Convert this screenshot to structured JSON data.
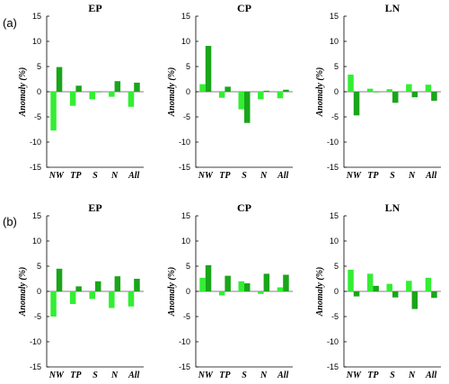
{
  "colors": {
    "light": "#33ee33",
    "dark": "#1aa51a"
  },
  "rows": [
    {
      "label": "(a)"
    },
    {
      "label": "(b)"
    }
  ],
  "chart_data": [
    {
      "type": "bar",
      "row": "(a)",
      "title": "EP",
      "categories": [
        "NW",
        "TP",
        "S",
        "N",
        "All"
      ],
      "ylabel": "Anomaly (%)",
      "ylim": [
        -15,
        15
      ],
      "yticks": [
        -15,
        -10,
        -5,
        0,
        5,
        10,
        15
      ],
      "series": [
        {
          "values": [
            -7.7,
            -2.8,
            -1.5,
            -1.0,
            -3.0
          ]
        },
        {
          "values": [
            4.9,
            1.2,
            0.0,
            2.1,
            1.8
          ]
        }
      ]
    },
    {
      "type": "bar",
      "row": "(a)",
      "title": "CP",
      "categories": [
        "NW",
        "TP",
        "S",
        "N",
        "All"
      ],
      "ylabel": "Anomaly (%)",
      "ylim": [
        -15,
        15
      ],
      "yticks": [
        -15,
        -10,
        -5,
        0,
        5,
        10,
        15
      ],
      "series": [
        {
          "values": [
            1.5,
            -1.2,
            -3.5,
            -1.5,
            -1.3
          ]
        },
        {
          "values": [
            9.1,
            1.0,
            -6.2,
            0.2,
            0.4
          ]
        }
      ]
    },
    {
      "type": "bar",
      "row": "(a)",
      "title": "LN",
      "categories": [
        "NW",
        "TP",
        "S",
        "N",
        "All"
      ],
      "ylabel": "Anomaly (%)",
      "ylim": [
        -15,
        15
      ],
      "yticks": [
        -15,
        -10,
        -5,
        0,
        5,
        10,
        15
      ],
      "series": [
        {
          "values": [
            3.4,
            0.6,
            0.5,
            1.5,
            1.4
          ]
        },
        {
          "values": [
            -4.7,
            0.0,
            -2.2,
            -1.1,
            -1.8
          ]
        }
      ]
    },
    {
      "type": "bar",
      "row": "(b)",
      "title": "EP",
      "categories": [
        "NW",
        "TP",
        "S",
        "N",
        "All"
      ],
      "ylabel": "Anomaly (%)",
      "ylim": [
        -15,
        15
      ],
      "yticks": [
        -15,
        -10,
        -5,
        0,
        5,
        10,
        15
      ],
      "series": [
        {
          "values": [
            -5.0,
            -2.5,
            -1.5,
            -3.3,
            -3.0
          ]
        },
        {
          "values": [
            4.5,
            1.0,
            2.0,
            3.0,
            2.5
          ]
        }
      ]
    },
    {
      "type": "bar",
      "row": "(b)",
      "title": "CP",
      "categories": [
        "NW",
        "TP",
        "S",
        "N",
        "All"
      ],
      "ylabel": "Anomaly (%)",
      "ylim": [
        -15,
        15
      ],
      "yticks": [
        -15,
        -10,
        -5,
        0,
        5,
        10,
        15
      ],
      "series": [
        {
          "values": [
            2.7,
            -0.8,
            2.0,
            -0.5,
            0.8
          ]
        },
        {
          "values": [
            5.2,
            3.1,
            1.6,
            3.5,
            3.3
          ]
        }
      ]
    },
    {
      "type": "bar",
      "row": "(b)",
      "title": "LN",
      "categories": [
        "NW",
        "TP",
        "S",
        "N",
        "All"
      ],
      "ylabel": "Anomaly (%)",
      "ylim": [
        -15,
        15
      ],
      "yticks": [
        -15,
        -10,
        -5,
        0,
        5,
        10,
        15
      ],
      "series": [
        {
          "values": [
            4.3,
            3.5,
            1.5,
            2.1,
            2.7
          ]
        },
        {
          "values": [
            -1.0,
            1.1,
            -1.2,
            -3.5,
            -1.3
          ]
        }
      ]
    }
  ]
}
